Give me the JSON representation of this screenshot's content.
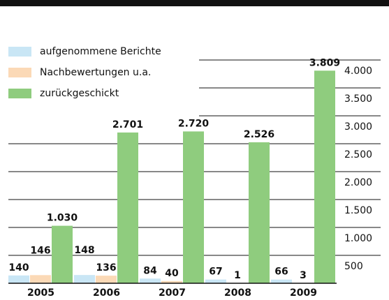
{
  "chart_data": {
    "type": "bar",
    "categories": [
      "2005",
      "2006",
      "2007",
      "2008",
      "2009"
    ],
    "series": [
      {
        "name": "aufgenommene Berichte",
        "color": "#c9e6f5",
        "values": [
          140,
          148,
          84,
          67,
          66
        ]
      },
      {
        "name": "Nachbewertungen u.a.",
        "color": "#fbd9b6",
        "values": [
          146,
          136,
          40,
          1,
          3
        ]
      },
      {
        "name": "zurückgeschickt",
        "color": "#8fcc7e",
        "values": [
          1030,
          2701,
          2720,
          2526,
          3809
        ],
        "value_labels": [
          "1.030",
          "2.701",
          "2.720",
          "2.526",
          "3.809"
        ]
      }
    ],
    "ylim": [
      0,
      4000
    ],
    "yticks": [
      {
        "value": 500,
        "label": "500"
      },
      {
        "value": 1000,
        "label": "1.000"
      },
      {
        "value": 1500,
        "label": "1.500"
      },
      {
        "value": 2000,
        "label": "2.000"
      },
      {
        "value": 2500,
        "label": "2.500"
      },
      {
        "value": 3000,
        "label": "3.000"
      },
      {
        "value": 3500,
        "label": "3.500"
      },
      {
        "value": 4000,
        "label": "4.000"
      }
    ],
    "grid": true
  }
}
